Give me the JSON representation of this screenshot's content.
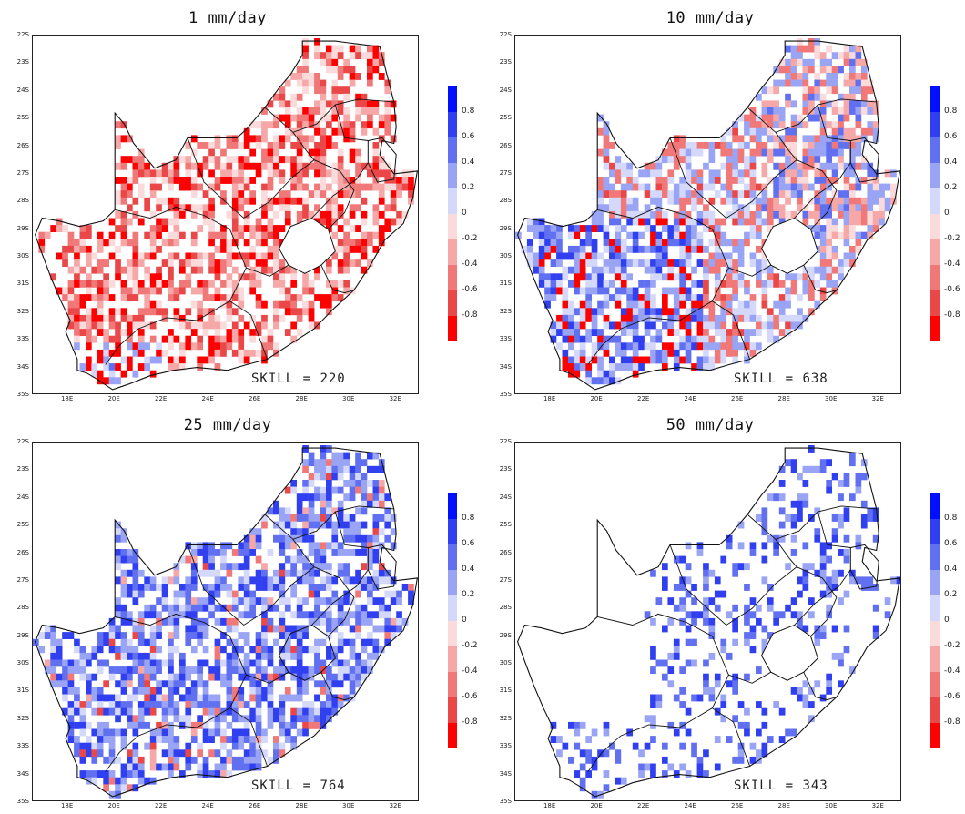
{
  "panels": [
    {
      "title": "1 mm/day",
      "skill_label": "SKILL",
      "skill_value": "= 220",
      "scheme": "red"
    },
    {
      "title": "10 mm/day",
      "skill_label": "SKILL",
      "skill_value": "= 638",
      "scheme": "mixed"
    },
    {
      "title": "25 mm/day",
      "skill_label": "SKILL",
      "skill_value": "= 764",
      "scheme": "blue"
    },
    {
      "title": "50 mm/day",
      "skill_label": "SKILL",
      "skill_value": "= 343",
      "scheme": "sparse"
    }
  ],
  "lat_labels": [
    "22S",
    "23S",
    "24S",
    "25S",
    "26S",
    "27S",
    "28S",
    "29S",
    "30S",
    "31S",
    "32S",
    "33S",
    "34S",
    "35S"
  ],
  "lon_labels": [
    "18E",
    "20E",
    "22E",
    "24E",
    "26E",
    "28E",
    "30E",
    "32E"
  ],
  "colorbar": {
    "labels": [
      "0.8",
      "0.6",
      "0.4",
      "0.2",
      "0",
      "-0.2",
      "-0.4",
      "-0.6",
      "-0.8"
    ],
    "colors": [
      "#0010ff",
      "#3040f0",
      "#6070f0",
      "#9aa4f4",
      "#d4d8fa",
      "#fadada",
      "#f6a8a8",
      "#f07878",
      "#ea4848",
      "#ff0000"
    ]
  }
}
